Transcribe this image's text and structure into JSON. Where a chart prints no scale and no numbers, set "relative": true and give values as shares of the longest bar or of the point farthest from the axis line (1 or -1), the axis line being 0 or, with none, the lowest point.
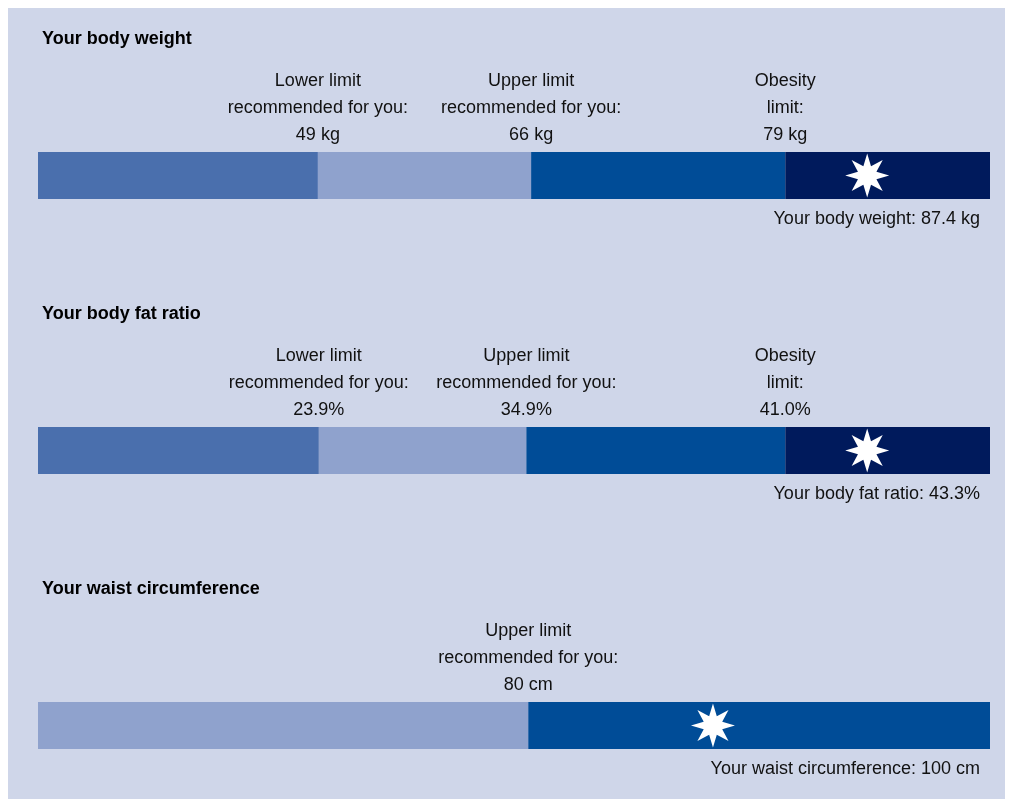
{
  "chart_data": [
    {
      "type": "bar",
      "orientation": "horizontal",
      "stacked": true,
      "relative": true,
      "title": "Your body weight",
      "categories": [
        null
      ],
      "series": [
        {
          "color": "#4a6fad",
          "values": [
            0.294
          ]
        },
        {
          "color": "#8fa2cd",
          "values": [
            0.224
          ]
        },
        {
          "color": "#004c97",
          "values": [
            0.267
          ]
        },
        {
          "color": "#001a5c",
          "values": [
            0.215
          ]
        }
      ],
      "annotations": [
        "Lower limit\nrecommended for you:\n49 kg",
        "Upper limit\nrecommended for you:\n66 kg",
        "Obesity\nlimit:\n79 kg",
        "Your body weight: 87.4 kg"
      ]
    },
    {
      "type": "bar",
      "orientation": "horizontal",
      "stacked": true,
      "relative": true,
      "title": "Your body fat ratio",
      "categories": [
        null
      ],
      "series": [
        {
          "color": "#4a6fad",
          "values": [
            0.295
          ]
        },
        {
          "color": "#8fa2cd",
          "values": [
            0.218
          ]
        },
        {
          "color": "#004c97",
          "values": [
            0.272
          ]
        },
        {
          "color": "#001a5c",
          "values": [
            0.215
          ]
        }
      ],
      "annotations": [
        "Lower limit\nrecommended for you:\n23.9%",
        "Upper limit\nrecommended for you:\n34.9%",
        "Obesity\nlimit:\n41.0%",
        "Your body fat ratio: 43.3%"
      ]
    },
    {
      "type": "bar",
      "orientation": "horizontal",
      "stacked": true,
      "relative": true,
      "title": "Your waist circumference",
      "categories": [
        null
      ],
      "series": [
        {
          "color": "#8fa2cd",
          "values": [
            0.515
          ]
        },
        {
          "color": "#004c97",
          "values": [
            0.485
          ]
        }
      ],
      "annotations": [
        "Upper limit\nrecommended for you:\n80 cm",
        "Your waist circumference: 100 cm"
      ]
    }
  ]
}
